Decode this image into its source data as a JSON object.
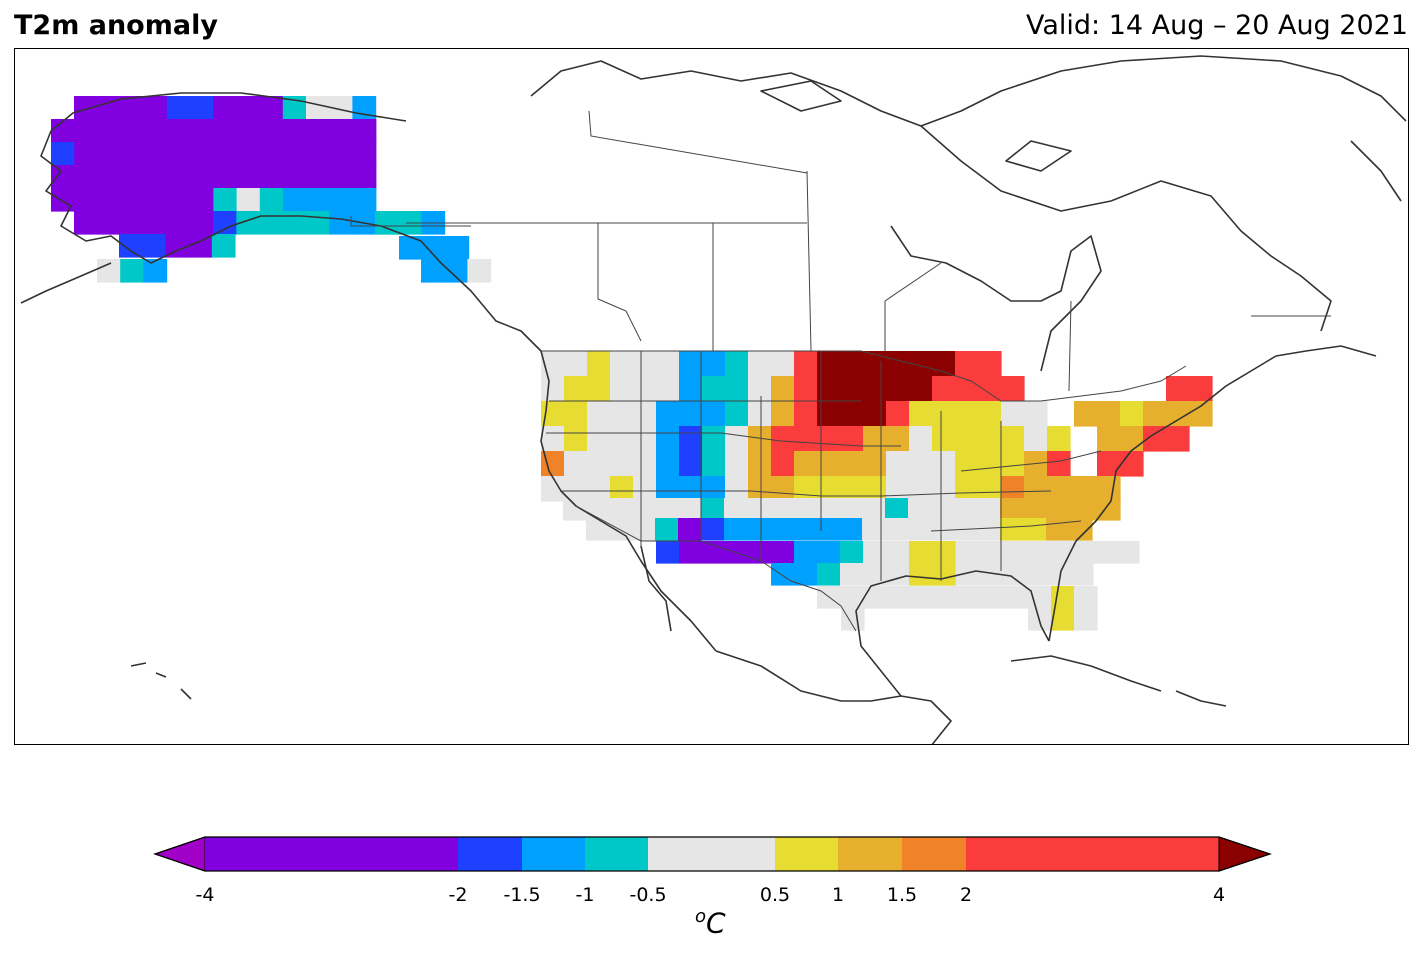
{
  "title": "T2m anomaly",
  "valid": "Valid: 14 Aug – 20 Aug 2021",
  "colorbar": {
    "unit_superscript": "o",
    "unit": "C",
    "ticks": [
      "-4",
      "-2",
      "-1.5",
      "-1",
      "-0.5",
      "0.5",
      "1",
      "1.5",
      "2",
      "4"
    ],
    "bins": [
      {
        "min": -4,
        "max": -2,
        "color": "#8000e0"
      },
      {
        "min": -2,
        "max": -1.5,
        "color": "#2040ff"
      },
      {
        "min": -1.5,
        "max": -1,
        "color": "#00a0ff"
      },
      {
        "min": -1,
        "max": -0.5,
        "color": "#00c8c8"
      },
      {
        "min": -0.5,
        "max": 0.5,
        "color": "#e6e6e6"
      },
      {
        "min": 0.5,
        "max": 1,
        "color": "#e6dc32"
      },
      {
        "min": 1,
        "max": 1.5,
        "color": "#e6af2d"
      },
      {
        "min": 1.5,
        "max": 2,
        "color": "#f08228"
      },
      {
        "min": 2,
        "max": 4,
        "color": "#fa3c3c"
      }
    ],
    "under_color": "#a000c8",
    "over_color": "#8b0000"
  },
  "regions": {
    "alaska": "much below normal (-4 to -2 °C) across western and central Alaska",
    "northern_plains": "much above normal (>4 °C) over North Dakota and northern Minnesota",
    "southwest": "below normal (-4 to -1 °C) over Arizona, New Mexico and the Texas panhandle",
    "northeast": "above normal (1 to 4 °C) over the Mid-Atlantic and New England"
  }
}
